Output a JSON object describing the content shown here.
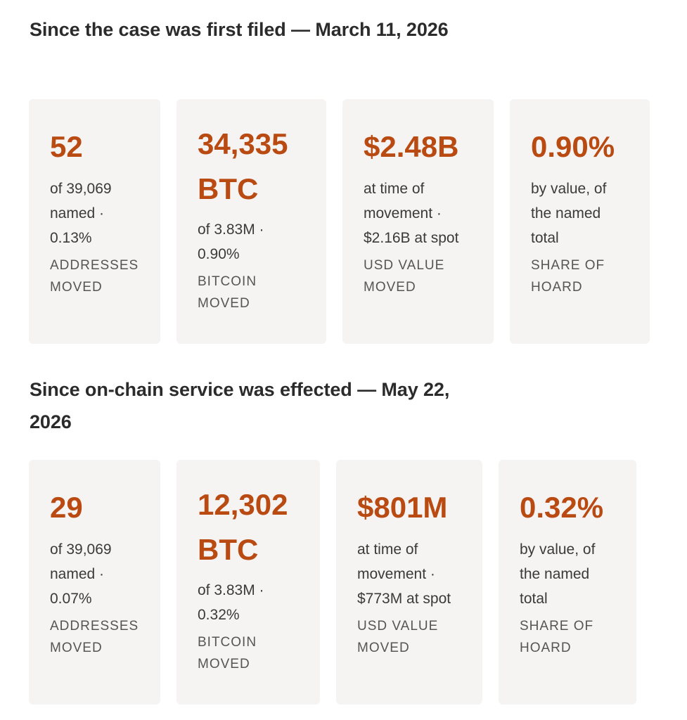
{
  "sections": [
    {
      "title": "Since the case was first filed — March 11, 2026",
      "cards": [
        {
          "value": "52",
          "value_line2": "",
          "desc": "of 39,069 named · 0.13%",
          "label": "ADDRESSES MOVED"
        },
        {
          "value": "34,335",
          "value_line2": "BTC",
          "desc": "of 3.83M · 0.90%",
          "label": "BITCOIN MOVED"
        },
        {
          "value": "$2.48B",
          "value_line2": "",
          "desc": "at time of movement · $2.16B at spot",
          "label": "USD VALUE MOVED"
        },
        {
          "value": "0.90%",
          "value_line2": "",
          "desc": "by value, of the named total",
          "label": "SHARE OF HOARD"
        }
      ]
    },
    {
      "title": "Since on-chain service was effected — May 22, 2026",
      "cards": [
        {
          "value": "29",
          "value_line2": "",
          "desc": "of 39,069 named · 0.07%",
          "label": "ADDRESSES MOVED"
        },
        {
          "value": "12,302",
          "value_line2": "BTC",
          "desc": "of 3.83M · 0.32%",
          "label": "BITCOIN MOVED"
        },
        {
          "value": "$801M",
          "value_line2": "",
          "desc": "at time of movement · $773M at spot",
          "label": "USD VALUE MOVED"
        },
        {
          "value": "0.32%",
          "value_line2": "",
          "desc": "by value, of the named total",
          "label": "SHARE OF HOARD"
        }
      ]
    }
  ],
  "colors": {
    "accent": "#b84a12",
    "card_background": "#f6f4f2",
    "title_text": "#2b2b2b"
  }
}
